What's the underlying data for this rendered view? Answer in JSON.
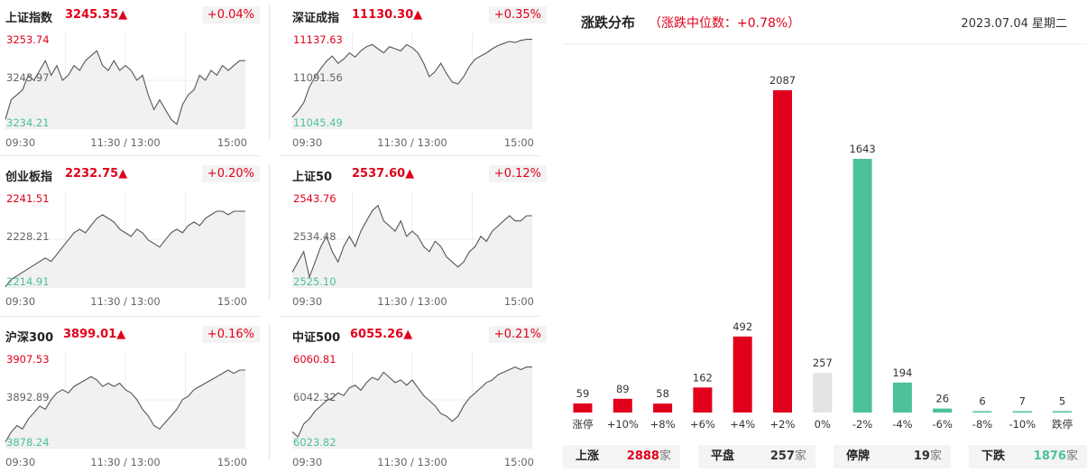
{
  "colors": {
    "up": "#e0001b",
    "down": "#4cc19c",
    "flat": "#e4e4e4"
  },
  "indices": [
    {
      "name": "上证指数",
      "price": "3245.35▲",
      "pct": "+0.04%",
      "y_max": "3253.74",
      "y_mid": "3243.97",
      "y_min": "3234.21",
      "x_start": "09:30",
      "x_mid": "11:30 / 13:00",
      "x_end": "15:00",
      "series": [
        3236,
        3240,
        3241,
        3242,
        3245,
        3244,
        3246,
        3248,
        3245,
        3247,
        3244,
        3245,
        3247,
        3246,
        3248,
        3249,
        3250,
        3247,
        3246,
        3248,
        3246,
        3247,
        3246,
        3244,
        3245,
        3241,
        3238,
        3240,
        3238,
        3236,
        3235,
        3239,
        3241,
        3242,
        3245,
        3244,
        3246,
        3245,
        3247,
        3246,
        3247,
        3248,
        3248
      ]
    },
    {
      "name": "深证成指",
      "price": "11130.30▲",
      "pct": "+0.35%",
      "y_max": "11137.63",
      "y_mid": "11091.56",
      "y_min": "11045.49",
      "x_start": "09:30",
      "x_mid": "11:30 / 13:00",
      "x_end": "15:00",
      "series": [
        11056,
        11062,
        11070,
        11085,
        11095,
        11103,
        11110,
        11115,
        11108,
        11112,
        11118,
        11114,
        11120,
        11124,
        11126,
        11122,
        11118,
        11124,
        11122,
        11120,
        11126,
        11123,
        11118,
        11108,
        11095,
        11100,
        11108,
        11098,
        11090,
        11088,
        11095,
        11105,
        11112,
        11115,
        11118,
        11122,
        11125,
        11127,
        11129,
        11128,
        11130,
        11131,
        11131
      ]
    },
    {
      "name": "创业板指",
      "price": "2232.75▲",
      "pct": "+0.20%",
      "y_max": "2241.51",
      "y_mid": "2228.21",
      "y_min": "2214.91",
      "x_start": "09:30",
      "x_mid": "11:30 / 13:00",
      "x_end": "15:00",
      "series": [
        2215,
        2217,
        2218,
        2219,
        2220,
        2221,
        2222,
        2223,
        2222,
        2224,
        2226,
        2228,
        2230,
        2231,
        2230,
        2232,
        2234,
        2235,
        2234,
        2233,
        2231,
        2230,
        2229,
        2231,
        2230,
        2228,
        2227,
        2226,
        2228,
        2230,
        2231,
        2230,
        2232,
        2233,
        2232,
        2234,
        2235,
        2236,
        2236,
        2235,
        2236,
        2236,
        2236
      ]
    },
    {
      "name": "上证50",
      "price": "2537.60▲",
      "pct": "+0.12%",
      "y_max": "2543.76",
      "y_mid": "2534.48",
      "y_min": "2525.10",
      "x_start": "09:30",
      "x_mid": "11:30 / 13:00",
      "x_end": "15:00",
      "series": [
        2528,
        2530,
        2532,
        2527,
        2530,
        2533,
        2535,
        2532,
        2530,
        2533,
        2535,
        2533,
        2536,
        2538,
        2540,
        2541,
        2538,
        2537,
        2536,
        2538,
        2535,
        2536,
        2535,
        2533,
        2532,
        2534,
        2533,
        2531,
        2530,
        2529,
        2530,
        2532,
        2533,
        2535,
        2534,
        2536,
        2537,
        2538,
        2539,
        2538,
        2538,
        2539,
        2539
      ]
    },
    {
      "name": "沪深300",
      "price": "3899.01▲",
      "pct": "+0.16%",
      "y_max": "3907.53",
      "y_mid": "3892.89",
      "y_min": "3878.24",
      "x_start": "09:30",
      "x_mid": "11:30 / 13:00",
      "x_end": "15:00",
      "series": [
        3880,
        3883,
        3885,
        3884,
        3887,
        3889,
        3891,
        3890,
        3893,
        3895,
        3896,
        3895,
        3897,
        3898,
        3899,
        3900,
        3899,
        3897,
        3898,
        3897,
        3898,
        3896,
        3895,
        3893,
        3890,
        3888,
        3885,
        3884,
        3886,
        3888,
        3890,
        3893,
        3894,
        3896,
        3897,
        3898,
        3899,
        3900,
        3901,
        3902,
        3901,
        3902,
        3902
      ]
    },
    {
      "name": "中证500",
      "price": "6055.26▲",
      "pct": "+0.21%",
      "y_max": "6060.81",
      "y_mid": "6042.32",
      "y_min": "6023.82",
      "x_start": "09:30",
      "x_mid": "11:30 / 13:00",
      "x_end": "15:00",
      "series": [
        6030,
        6028,
        6033,
        6035,
        6038,
        6040,
        6042,
        6043,
        6045,
        6044,
        6047,
        6048,
        6046,
        6049,
        6051,
        6050,
        6053,
        6051,
        6049,
        6050,
        6048,
        6050,
        6047,
        6044,
        6042,
        6040,
        6037,
        6036,
        6034,
        6036,
        6040,
        6043,
        6045,
        6047,
        6049,
        6050,
        6052,
        6053,
        6054,
        6055,
        6054,
        6055,
        6055
      ]
    }
  ],
  "distribution": {
    "title": "涨跌分布",
    "subtitle": "（涨跌中位数：+0.78%）",
    "date": "2023.07.04 星期二"
  },
  "chart_data": {
    "type": "bar",
    "categories": [
      "涨停",
      "+10%",
      "+8%",
      "+6%",
      "+4%",
      "+2%",
      "0%",
      "-2%",
      "-4%",
      "-6%",
      "-8%",
      "-10%",
      "跌停"
    ],
    "values": [
      59,
      89,
      58,
      162,
      492,
      2087,
      257,
      1643,
      194,
      26,
      6,
      7,
      5
    ],
    "bar_colors": [
      "up",
      "up",
      "up",
      "up",
      "up",
      "up",
      "flat",
      "down",
      "down",
      "down",
      "down",
      "down",
      "down"
    ]
  },
  "summary": [
    {
      "label": "上涨",
      "value": "2888",
      "unit": "家",
      "color": "up"
    },
    {
      "label": "平盘",
      "value": "257",
      "unit": "家",
      "color": "plain"
    },
    {
      "label": "停牌",
      "value": "19",
      "unit": "家",
      "color": "plain"
    },
    {
      "label": "下跌",
      "value": "1876",
      "unit": "家",
      "color": "down"
    }
  ]
}
